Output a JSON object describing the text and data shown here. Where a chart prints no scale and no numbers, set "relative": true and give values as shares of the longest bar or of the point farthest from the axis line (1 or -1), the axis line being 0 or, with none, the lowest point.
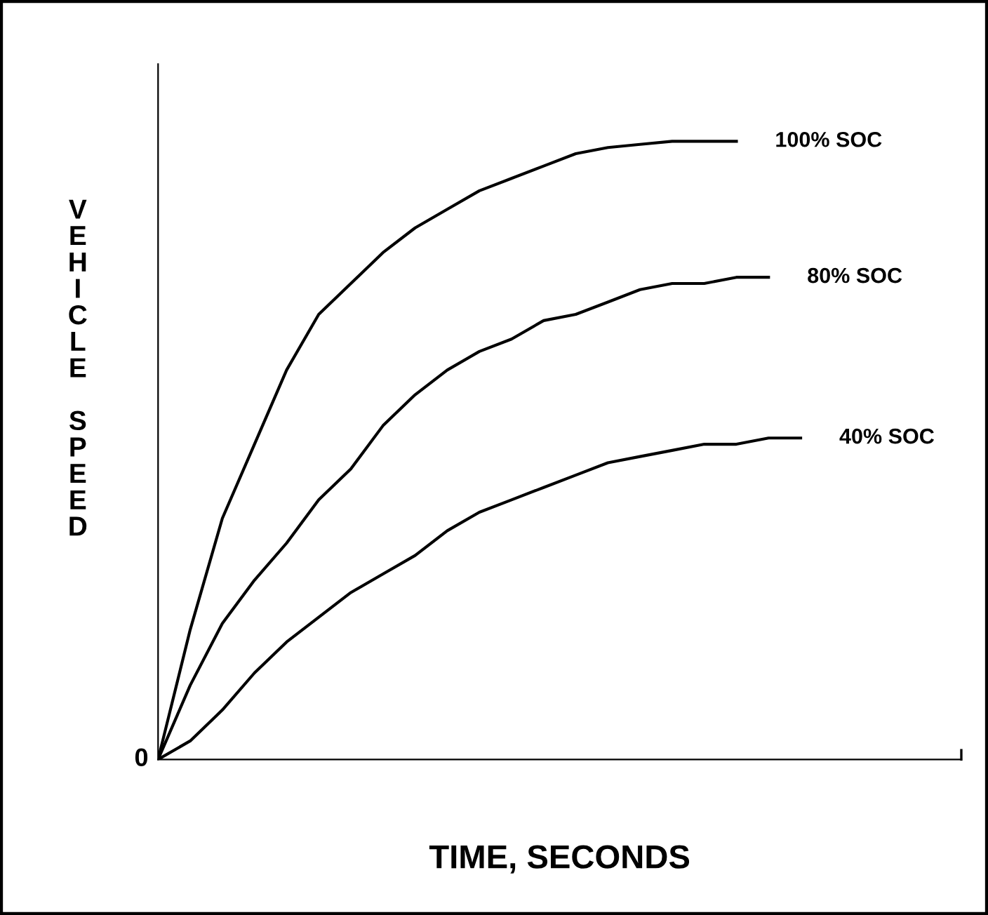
{
  "chart_data": {
    "type": "line",
    "relative": true,
    "xlabel": "TIME, SECONDS",
    "ylabel": "VEHICLE SPEED",
    "annotations": [
      "0"
    ],
    "categories": [
      null,
      null,
      null,
      null,
      null,
      null,
      null,
      null,
      null,
      null,
      null,
      null,
      null,
      null,
      null,
      null,
      null,
      null,
      null,
      null,
      null,
      null,
      null,
      null,
      null,
      null
    ],
    "series": [
      {
        "name": "100% SOC",
        "color": "#000000",
        "values": [
          0,
          0.21,
          0.39,
          0.51,
          0.63,
          0.72,
          0.77,
          0.82,
          0.86,
          0.89,
          0.92,
          0.94,
          0.96,
          0.98,
          0.99,
          0.995,
          1.0,
          1.0,
          1.0,
          null,
          null,
          null,
          null,
          null,
          null,
          null
        ]
      },
      {
        "name": "80% SOC",
        "color": "#000000",
        "values": [
          0,
          0.12,
          0.22,
          0.29,
          0.35,
          0.42,
          0.47,
          0.54,
          0.59,
          0.63,
          0.66,
          0.68,
          0.71,
          0.72,
          0.74,
          0.76,
          0.77,
          0.77,
          0.78,
          0.78,
          null,
          null,
          null,
          null,
          null,
          null
        ]
      },
      {
        "name": "40% SOC",
        "color": "#000000",
        "values": [
          0,
          0.03,
          0.08,
          0.14,
          0.19,
          0.23,
          0.27,
          0.3,
          0.33,
          0.37,
          0.4,
          0.42,
          0.44,
          0.46,
          0.48,
          0.49,
          0.5,
          0.51,
          0.51,
          0.52,
          0.52,
          null,
          null,
          null,
          null,
          null
        ]
      }
    ],
    "grid": false,
    "legend": false,
    "marker": "none",
    "line_style": "solid"
  }
}
